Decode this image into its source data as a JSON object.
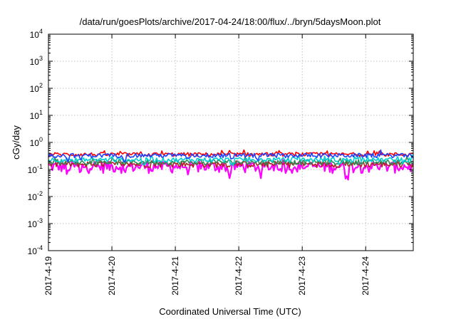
{
  "chart_data": {
    "type": "line",
    "title": "/data/run/goesPlots/archive/2017-04-24/18:00/flux/../bryn/5daysMoon.plot",
    "xlabel": "Coordinated Universal Time (UTC)",
    "ylabel": "cGy/day",
    "yscale": "log",
    "ylim": [
      0.0001,
      10000
    ],
    "xlim": [
      "2017-04-19 00:00",
      "2017-04-24 18:00"
    ],
    "grid": true,
    "y_ticks": [
      {
        "value": 0.0001,
        "mantissa": "10",
        "exp": "-4"
      },
      {
        "value": 0.001,
        "mantissa": "10",
        "exp": "-3"
      },
      {
        "value": 0.01,
        "mantissa": "10",
        "exp": "-2"
      },
      {
        "value": 0.1,
        "mantissa": "10",
        "exp": "-1"
      },
      {
        "value": 1,
        "mantissa": "10",
        "exp": "0"
      },
      {
        "value": 10,
        "mantissa": "10",
        "exp": "1"
      },
      {
        "value": 100,
        "mantissa": "10",
        "exp": "2"
      },
      {
        "value": 1000,
        "mantissa": "10",
        "exp": "3"
      },
      {
        "value": 10000,
        "mantissa": "10",
        "exp": "4"
      }
    ],
    "x_ticks": [
      {
        "value": "2017-04-19",
        "label": "2017-4-19"
      },
      {
        "value": "2017-04-20",
        "label": "2017-4-20"
      },
      {
        "value": "2017-04-21",
        "label": "2017-4-21"
      },
      {
        "value": "2017-04-22",
        "label": "2017-4-22"
      },
      {
        "value": "2017-04-23",
        "label": "2017-4-23"
      },
      {
        "value": "2017-04-24",
        "label": "2017-4-24"
      }
    ],
    "series": [
      {
        "color": "#ff00ff",
        "base": 0.12,
        "amp": 0.12,
        "dips": [
          0.3,
          0.5,
          1.2,
          2.2,
          2.85,
          3.35,
          4.7
        ],
        "dip_factor": 0.55
      },
      {
        "color": "#b22222",
        "base": 0.15,
        "amp": 0.08,
        "dips": [],
        "dip_factor": 1
      },
      {
        "color": "#2e8b57",
        "base": 0.18,
        "amp": 0.08,
        "dips": [],
        "dip_factor": 1
      },
      {
        "color": "#00ced1",
        "base": 0.22,
        "amp": 0.09,
        "dips": [
          0.4,
          1.5,
          2.9,
          3.3,
          4.6,
          5.6
        ],
        "dip_factor": 0.75
      },
      {
        "color": "#ff0000",
        "base": 0.35,
        "amp": 0.12,
        "dips": [],
        "dip_factor": 1
      },
      {
        "color": "#1e40ff",
        "base": 0.32,
        "amp": 0.12,
        "dips": [
          0.3,
          0.5,
          1.2,
          2.2,
          2.9,
          3.3
        ],
        "dip_factor": 0.7
      }
    ]
  }
}
